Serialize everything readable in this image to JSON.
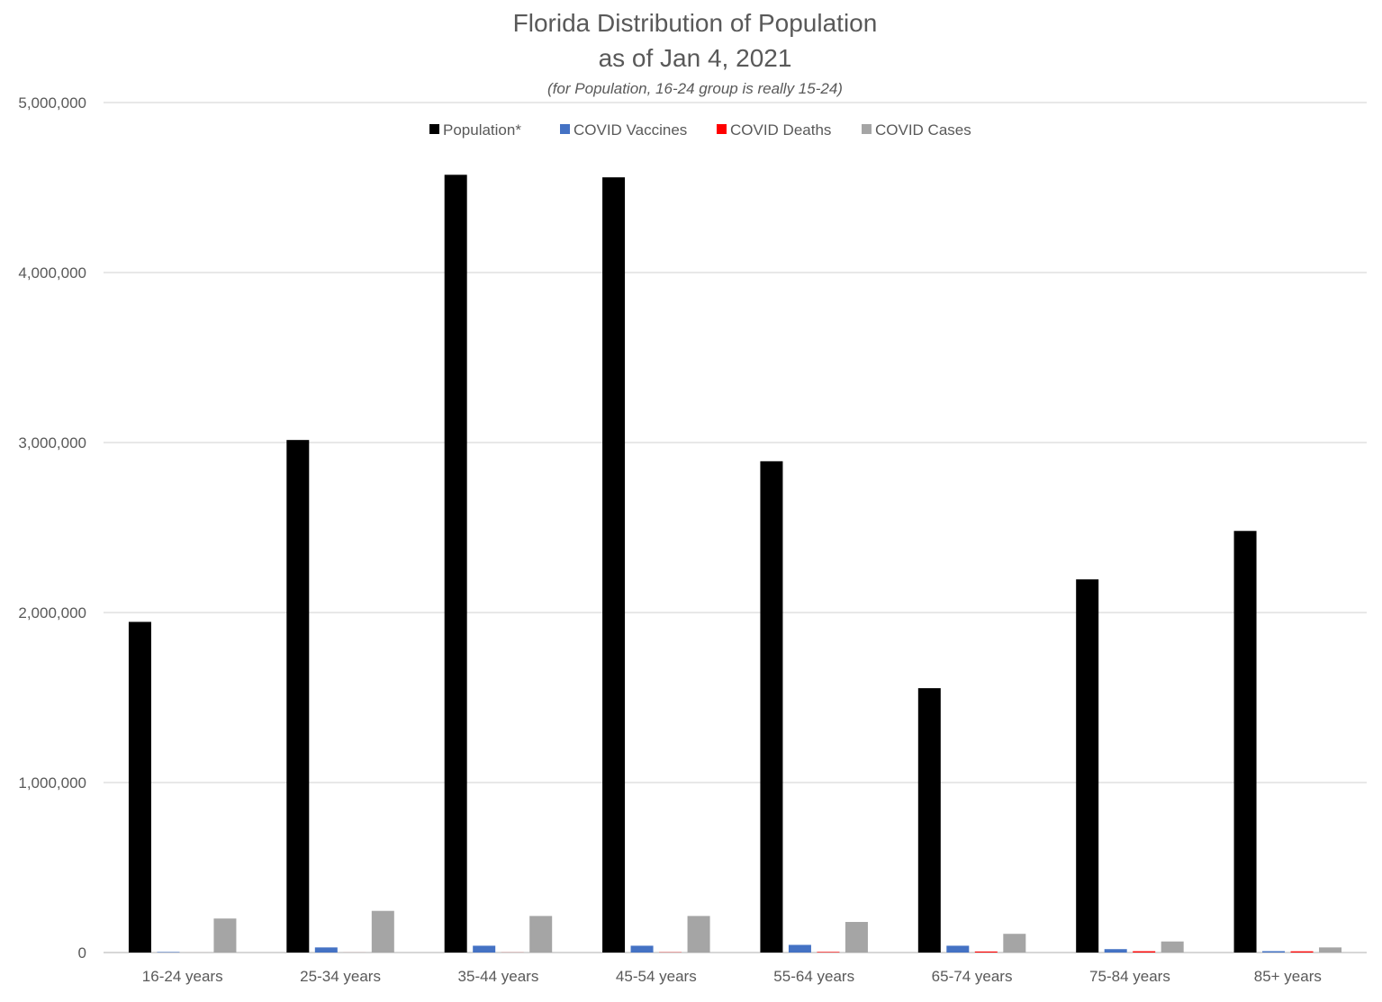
{
  "chart_data": {
    "type": "bar",
    "title_line1": "Florida Distribution of Population",
    "title_line2": "as of Jan 4, 2021",
    "subtitle": "(for Population, 16-24 group is really 15-24)",
    "categories": [
      "16-24 years",
      "25-34 years",
      "35-44 years",
      "45-54 years",
      "55-64 years",
      "65-74 years",
      "75-84 years",
      "85+ years"
    ],
    "series": [
      {
        "name": "Population*",
        "color": "#000000",
        "values": [
          1945000,
          3015000,
          4575000,
          4560000,
          2890000,
          1555000,
          2195000,
          2480000
        ]
      },
      {
        "name": "COVID Vaccines",
        "color": "#4472C4",
        "values": [
          3000,
          30000,
          40000,
          40000,
          45000,
          40000,
          20000,
          8000
        ]
      },
      {
        "name": "COVID Deaths",
        "color": "#FF0000",
        "values": [
          50,
          200,
          600,
          1500,
          3500,
          6000,
          7500,
          7000
        ]
      },
      {
        "name": "COVID Cases",
        "color": "#A5A5A5",
        "values": [
          200000,
          245000,
          215000,
          215000,
          180000,
          110000,
          65000,
          30000
        ]
      }
    ],
    "ylim": [
      0,
      5000000
    ],
    "yticks": [
      "0",
      "1,000,000",
      "2,000,000",
      "3,000,000",
      "4,000,000",
      "5,000,000"
    ],
    "grid": true,
    "legend": "top-center"
  }
}
